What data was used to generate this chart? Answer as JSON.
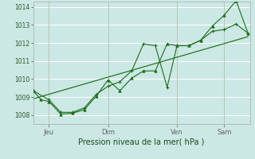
{
  "xlabel": "Pression niveau de la mer( hPa )",
  "background_color": "#cce8e4",
  "plot_bg_color": "#cce8e4",
  "grid_color": "#ffffff",
  "line_color": "#1a6e1a",
  "ylim": [
    1007.5,
    1014.3
  ],
  "xlim": [
    0,
    110
  ],
  "yticks": [
    1008,
    1009,
    1010,
    1011,
    1012,
    1013,
    1014
  ],
  "xtick_positions": [
    8,
    38,
    73,
    97
  ],
  "xtick_labels": [
    "Jeu",
    "Dim",
    "Ven",
    "Sam"
  ],
  "series1_x": [
    0,
    4,
    8,
    14,
    20,
    26,
    32,
    38,
    44,
    50,
    56,
    62,
    68,
    73,
    79,
    85,
    91,
    97,
    103,
    109
  ],
  "series1_y": [
    1009.35,
    1008.85,
    1008.75,
    1008.05,
    1008.1,
    1008.3,
    1009.05,
    1009.95,
    1009.35,
    1010.05,
    1010.45,
    1010.45,
    1011.95,
    1011.85,
    1011.85,
    1012.15,
    1012.95,
    1013.55,
    1014.35,
    1012.55
  ],
  "series2_x": [
    0,
    8,
    14,
    20,
    26,
    32,
    38,
    44,
    50,
    56,
    62,
    68,
    73,
    79,
    85,
    91,
    97,
    103,
    109
  ],
  "series2_y": [
    1009.35,
    1008.85,
    1008.15,
    1008.15,
    1008.4,
    1009.15,
    1009.6,
    1009.85,
    1010.45,
    1011.95,
    1011.85,
    1009.55,
    1011.85,
    1011.85,
    1012.15,
    1012.65,
    1012.75,
    1013.05,
    1012.55
  ],
  "trend_x": [
    0,
    109
  ],
  "trend_y": [
    1008.9,
    1012.35
  ]
}
